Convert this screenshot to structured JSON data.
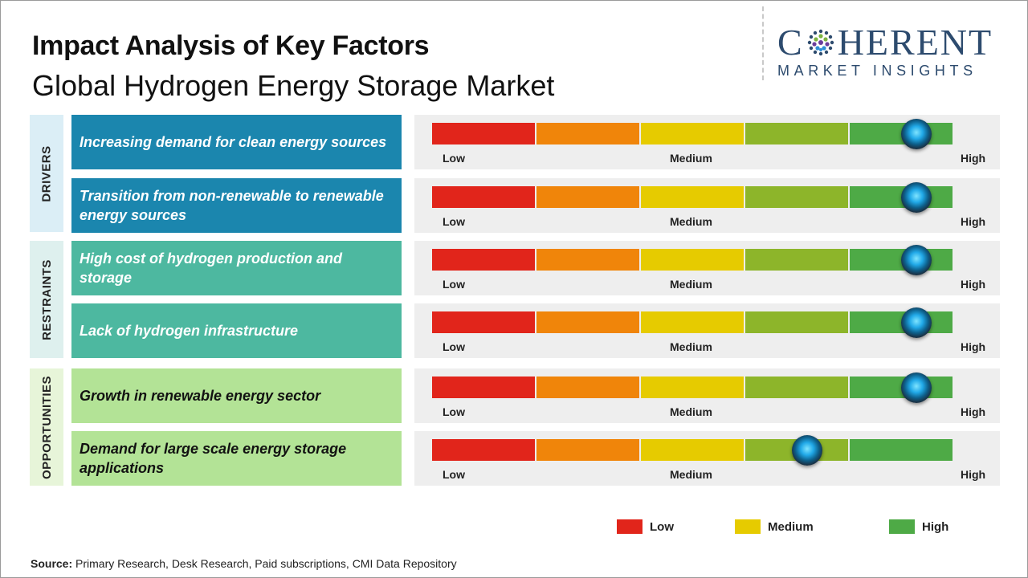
{
  "header": {
    "title": "Impact Analysis of Key Factors",
    "subtitle": "Global Hydrogen Energy Storage Market"
  },
  "logo": {
    "text_main": "COHERENT",
    "text_sub": "MARKET INSIGHTS"
  },
  "chart_data": {
    "type": "table",
    "scale": [
      "Low",
      "Medium",
      "High"
    ],
    "segment_colors": [
      "#e1251b",
      "#f0850a",
      "#e6cb00",
      "#8db52a",
      "#4eaa46"
    ],
    "groups": [
      {
        "name": "DRIVERS",
        "color": "#dbeef6",
        "factor_color": "#1b86ae",
        "text_color": "#ffffff",
        "factors": [
          {
            "label": "Increasing demand for clean energy sources",
            "impact": 0.93
          },
          {
            "label": "Transition from non-renewable to renewable energy sources",
            "impact": 0.93
          }
        ]
      },
      {
        "name": "RESTRAINTS",
        "color": "#def0ee",
        "factor_color": "#4db8a0",
        "text_color": "#ffffff",
        "factors": [
          {
            "label": "High cost of hydrogen production and storage",
            "impact": 0.93
          },
          {
            "label": "Lack of hydrogen infrastructure",
            "impact": 0.93
          }
        ]
      },
      {
        "name": "OPPORTUNITIES",
        "color": "#e7f5d9",
        "factor_color": "#b3e396",
        "text_color": "#111111",
        "factors": [
          {
            "label": "Growth in renewable energy sector",
            "impact": 0.93
          },
          {
            "label": "Demand for large scale energy storage applications",
            "impact": 0.72
          }
        ]
      }
    ],
    "legend": [
      {
        "label": "Low",
        "color": "#e1251b"
      },
      {
        "label": "Medium",
        "color": "#e6cb00"
      },
      {
        "label": "High",
        "color": "#4eaa46"
      }
    ]
  },
  "footer": {
    "source_label": "Source:",
    "source_text": "Primary Research, Desk Research, Paid subscriptions, CMI Data Repository"
  }
}
